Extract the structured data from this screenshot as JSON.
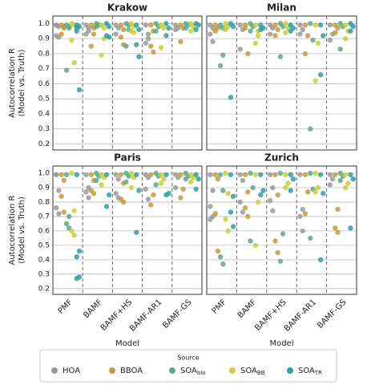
{
  "chart_data": {
    "type": "strip",
    "ylabel": [
      "Autocorrelation R",
      "(Model vs. Truth)"
    ],
    "xlabel": "Model",
    "categories": [
      "PMF",
      "BAMF",
      "BAMF+HS",
      "BAMF-AR1",
      "BAMF-GS"
    ],
    "ylim": [
      0.16,
      1.05
    ],
    "yticks": [
      0.2,
      0.3,
      0.4,
      0.5,
      0.6,
      0.7,
      0.8,
      0.9,
      {
        "value": 1,
        "label": "1.0"
      }
    ],
    "grid": true,
    "legend_title": "Source",
    "series": [
      {
        "name": "HOA",
        "color": "#9a9a9a"
      },
      {
        "name": "BBOA",
        "color": "#c49a3c"
      },
      {
        "name": "SOA",
        "sub": "bio",
        "color": "#5ea88a"
      },
      {
        "name": "SOA",
        "sub": "BB",
        "color": "#c8cf3a"
      },
      {
        "name": "SOA",
        "sub": "TR",
        "color": "#2f9ea0"
      }
    ],
    "panels": [
      {
        "title": "Krakow",
        "values": [
          [
            [
              0.99,
              0.98,
              0.92,
              0.91,
              0.99
            ],
            [
              0.99,
              0.97,
              0.93,
              0.95
            ],
            [
              0.99,
              0.97,
              0.93
            ],
            [
              0.99,
              0.9,
              0.87,
              0.93
            ],
            [
              0.99,
              0.97,
              0.96
            ]
          ],
          [
            [
              0.99,
              0.98,
              0.93,
              0.97
            ],
            [
              0.99,
              0.93,
              0.85,
              0.97
            ],
            [
              0.99,
              0.96,
              0.91,
              0.86
            ],
            [
              0.99,
              0.95,
              0.85,
              0.81
            ],
            [
              0.99,
              0.97,
              0.88
            ]
          ],
          [
            [
              0.99,
              0.97,
              0.69,
              0.98
            ],
            [
              1.0,
              0.99,
              0.98
            ],
            [
              1.0,
              0.99,
              0.85,
              0.96
            ],
            [
              1.0,
              0.98,
              0.95
            ],
            [
              1.0,
              0.99,
              0.97
            ]
          ],
          [
            [
              1.0,
              0.99,
              0.89,
              0.74
            ],
            [
              0.99,
              0.9,
              0.79,
              0.97
            ],
            [
              1.0,
              0.98,
              0.95,
              0.94
            ],
            [
              0.99,
              0.97,
              0.84
            ],
            [
              1.0,
              0.98,
              0.95
            ]
          ],
          [
            [
              0.99,
              0.98,
              0.97,
              0.56,
              0.95
            ],
            [
              1.0,
              0.98,
              0.92,
              0.91
            ],
            [
              0.99,
              0.96,
              0.86,
              0.78
            ],
            [
              1.0,
              0.97,
              0.92
            ],
            [
              1.0,
              0.99,
              0.96
            ]
          ]
        ]
      },
      {
        "title": "Milan",
        "values": [
          [
            [
              0.99,
              0.97,
              0.93,
              0.88
            ],
            [
              0.99,
              0.96,
              0.83
            ],
            [
              0.99,
              0.97,
              0.93
            ],
            [
              0.99,
              0.96,
              0.93
            ],
            [
              0.99,
              0.93,
              0.89
            ]
          ],
          [
            [
              0.99,
              0.97,
              0.95
            ],
            [
              0.99,
              0.8,
              0.97
            ],
            [
              0.99,
              0.96,
              0.92
            ],
            [
              0.99,
              0.92,
              0.8
            ],
            [
              0.99,
              0.97,
              0.94
            ]
          ],
          [
            [
              0.99,
              0.79,
              0.72,
              0.97
            ],
            [
              1.0,
              0.98,
              0.95
            ],
            [
              1.0,
              0.98,
              0.78
            ],
            [
              1.0,
              0.89,
              0.3
            ],
            [
              1.0,
              0.98,
              0.83
            ]
          ],
          [
            [
              1.0,
              0.98,
              0.96
            ],
            [
              0.99,
              0.92,
              0.87,
              0.95
            ],
            [
              1.0,
              0.97,
              0.94
            ],
            [
              0.99,
              0.87,
              0.62
            ],
            [
              0.99,
              0.95,
              0.9
            ]
          ],
          [
            [
              1.0,
              0.98,
              0.51
            ],
            [
              0.99,
              0.97,
              0.96
            ],
            [
              0.99,
              0.97,
              0.95
            ],
            [
              0.99,
              0.92,
              0.66
            ],
            [
              1.0,
              0.98,
              0.95
            ]
          ]
        ]
      },
      {
        "title": "Paris",
        "values": [
          [
            [
              0.99,
              0.88,
              0.76,
              0.72,
              0.99
            ],
            [
              0.99,
              0.9,
              0.87,
              0.83
            ],
            [
              0.99,
              0.96,
              0.86,
              0.83
            ],
            [
              0.99,
              0.97,
              0.89,
              0.82
            ],
            [
              0.99,
              0.97,
              0.9
            ]
          ],
          [
            [
              0.99,
              0.95,
              0.84,
              0.73
            ],
            [
              0.99,
              0.95,
              0.88,
              0.86
            ],
            [
              0.99,
              0.93,
              0.82,
              0.8
            ],
            [
              0.99,
              0.85,
              0.78
            ],
            [
              0.99,
              0.89,
              0.83
            ]
          ],
          [
            [
              0.99,
              0.7,
              0.65,
              0.62
            ],
            [
              1.0,
              0.98,
              0.95
            ],
            [
              1.0,
              0.98,
              0.94
            ],
            [
              1.0,
              0.98,
              0.92
            ],
            [
              1.0,
              0.98,
              0.96
            ]
          ],
          [
            [
              1.0,
              0.74,
              0.6,
              0.57
            ],
            [
              0.99,
              0.97,
              0.92
            ],
            [
              1.0,
              0.97,
              0.9
            ],
            [
              0.99,
              0.96,
              0.93
            ],
            [
              0.99,
              0.97,
              0.94
            ]
          ],
          [
            [
              0.99,
              0.46,
              0.42,
              0.28,
              0.27
            ],
            [
              0.99,
              0.85,
              0.77
            ],
            [
              0.99,
              0.88,
              0.59
            ],
            [
              0.99,
              0.86,
              0.85
            ],
            [
              0.99,
              0.96,
              0.89
            ]
          ]
        ]
      },
      {
        "title": "Zurich",
        "values": [
          [
            [
              0.99,
              0.88,
              0.77,
              0.7,
              0.68
            ],
            [
              0.99,
              0.95,
              0.8,
              0.73
            ],
            [
              0.99,
              0.9,
              0.81,
              0.74
            ],
            [
              0.99,
              0.75,
              0.7,
              0.6
            ],
            [
              0.99,
              0.96,
              0.92
            ]
          ],
          [
            [
              0.99,
              0.96,
              0.72,
              0.46
            ],
            [
              0.99,
              0.87,
              0.76,
              0.7
            ],
            [
              0.99,
              0.85,
              0.53,
              0.45
            ],
            [
              0.99,
              0.87,
              0.72
            ],
            [
              0.99,
              0.75,
              0.62,
              0.59
            ]
          ],
          [
            [
              0.99,
              0.88,
              0.42,
              0.37
            ],
            [
              1.0,
              0.9,
              0.53
            ],
            [
              1.0,
              0.58,
              0.39
            ],
            [
              1.0,
              0.89,
              0.55
            ],
            [
              1.0,
              0.98,
              0.95
            ]
          ],
          [
            [
              1.0,
              0.86,
              0.68,
              0.6
            ],
            [
              0.99,
              0.8,
              0.5
            ],
            [
              0.99,
              0.93,
              0.9
            ],
            [
              1.0,
              0.9,
              0.87
            ],
            [
              0.99,
              0.93,
              0.9
            ]
          ],
          [
            [
              0.99,
              0.84,
              0.73,
              0.63
            ],
            [
              0.99,
              0.88,
              0.85
            ],
            [
              0.99,
              0.96,
              0.88
            ],
            [
              0.99,
              0.86,
              0.4
            ],
            [
              0.99,
              0.96,
              0.62
            ]
          ]
        ]
      }
    ]
  }
}
